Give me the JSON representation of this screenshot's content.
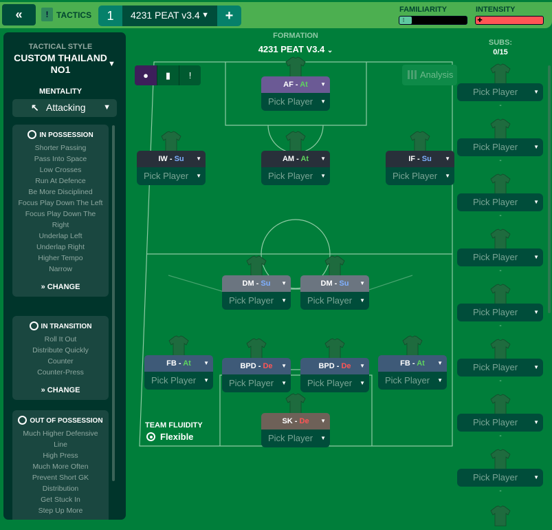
{
  "topbar": {
    "back_icon": "double-chevron-left",
    "section_label": "TACTICS",
    "tactic_slot": "1",
    "tactic_name": "4231 PEAT v3.4",
    "add_label": "+",
    "familiarity": {
      "label": "FAMILIARITY",
      "level_percent": 5,
      "color": "#5ec9a0"
    },
    "intensity": {
      "label": "INTENSITY",
      "level_percent": 100,
      "color": "#ff5555"
    }
  },
  "left_panel": {
    "tactical_style_label": "TACTICAL STYLE",
    "tactical_style_value": "CUSTOM THAILAND NO1",
    "mentality_label": "MENTALITY",
    "mentality_value": "Attacking",
    "sections": [
      {
        "title": "IN POSSESSION",
        "icon": "ball-icon",
        "items": [
          "Shorter Passing",
          "Pass Into Space",
          "Low Crosses",
          "Run At Defence",
          "Be More Disciplined",
          "Focus Play Down The Left",
          "Focus Play Down The Right",
          "Underlap Left",
          "Underlap Right",
          "Higher Tempo",
          "Narrow"
        ],
        "change_label": "CHANGE"
      },
      {
        "title": "IN TRANSITION",
        "icon": "transition-icon",
        "items": [
          "Roll It Out",
          "Distribute Quickly",
          "Counter",
          "Counter-Press"
        ],
        "change_label": "CHANGE"
      },
      {
        "title": "OUT OF POSSESSION",
        "icon": "defence-ball-icon",
        "items": [
          "Much Higher Defensive Line",
          "High Press",
          "Much More Often",
          "Prevent Short GK Distribution",
          "Get Stuck In",
          "Step Up More"
        ]
      }
    ]
  },
  "formation": {
    "label": "FORMATION",
    "value": "4231 PEAT V3.4"
  },
  "analysis_label": "Analysis",
  "colors": {
    "attack": "#5ed35e",
    "support": "#7fb0ff",
    "defend": "#ff5555"
  },
  "positions": [
    {
      "role": "AF",
      "duty": "At",
      "player": "Pick Player",
      "header_color": "#6b5a95"
    },
    {
      "role": "IW",
      "duty": "Su",
      "player": "Pick Player",
      "header_color": "#28303a"
    },
    {
      "role": "AM",
      "duty": "At",
      "player": "Pick Player",
      "header_color": "#28303a"
    },
    {
      "role": "IF",
      "duty": "Su",
      "player": "Pick Player",
      "header_color": "#28303a"
    },
    {
      "role": "DM",
      "duty": "Su",
      "player": "Pick Player",
      "header_color": "#6b7580"
    },
    {
      "role": "DM",
      "duty": "Su",
      "player": "Pick Player",
      "header_color": "#6b7580"
    },
    {
      "role": "FB",
      "duty": "At",
      "player": "Pick Player",
      "header_color": "#3e5a78"
    },
    {
      "role": "BPD",
      "duty": "De",
      "player": "Pick Player",
      "header_color": "#3e5a78"
    },
    {
      "role": "BPD",
      "duty": "De",
      "player": "Pick Player",
      "header_color": "#3e5a78"
    },
    {
      "role": "FB",
      "duty": "At",
      "player": "Pick Player",
      "header_color": "#3e5a78"
    },
    {
      "role": "SK",
      "duty": "De",
      "player": "Pick Player",
      "header_color": "#6e6158"
    }
  ],
  "subs": {
    "label": "SUBS:",
    "count": "0/15",
    "slots": [
      {
        "player": "Pick Player",
        "detail": "-"
      },
      {
        "player": "Pick Player",
        "detail": "-"
      },
      {
        "player": "Pick Player",
        "detail": "-"
      },
      {
        "player": "Pick Player",
        "detail": "-"
      },
      {
        "player": "Pick Player",
        "detail": "-"
      },
      {
        "player": "Pick Player",
        "detail": "-"
      },
      {
        "player": "Pick Player",
        "detail": "-"
      },
      {
        "player": "Pick Player",
        "detail": "-"
      }
    ]
  },
  "team_fluidity": {
    "label": "TEAM FLUIDITY",
    "value": "Flexible"
  }
}
